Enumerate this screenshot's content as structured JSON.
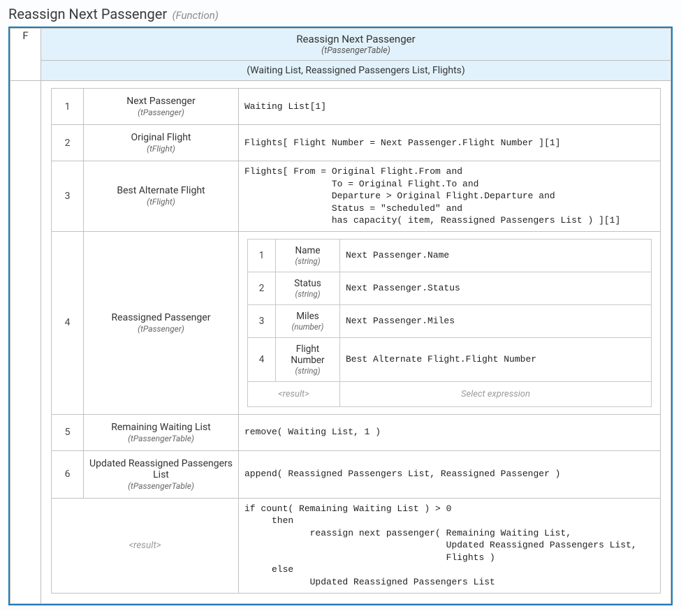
{
  "title": {
    "main": "Reassign Next Passenger",
    "type": "(Function)"
  },
  "header": {
    "name": "Reassign Next Passenger",
    "type": "(tPassengerTable)",
    "params": "(Waiting List, Reassigned Passengers List, Flights)",
    "f_label": "F",
    "bg_color": "#e2f2fc"
  },
  "colors": {
    "outer_border": "#1f7ab5",
    "cell_border": "#bdbdbd",
    "bg": "#fcfdfe"
  },
  "rows": [
    {
      "num": "1",
      "label": "Next Passenger",
      "type": "(tPassenger)",
      "expr": "Waiting List[1]"
    },
    {
      "num": "2",
      "label": "Original Flight",
      "type": "(tFlight)",
      "expr": "Flights[ Flight Number = Next Passenger.Flight Number ][1]"
    },
    {
      "num": "3",
      "label": "Best Alternate Flight",
      "type": "(tFlight)",
      "expr": "Flights[ From = Original Flight.From and\n                To = Original Flight.To and\n                Departure > Original Flight.Departure and\n                Status = \"scheduled\" and\n                has capacity( item, Reassigned Passengers List ) ][1]"
    },
    {
      "num": "4",
      "label": "Reassigned Passenger",
      "type": "(tPassenger)",
      "nested": [
        {
          "num": "1",
          "label": "Name",
          "type": "(string)",
          "expr": "Next Passenger.Name"
        },
        {
          "num": "2",
          "label": "Status",
          "type": "(string)",
          "expr": "Next Passenger.Status"
        },
        {
          "num": "3",
          "label": "Miles",
          "type": "(number)",
          "expr": "Next Passenger.Miles"
        },
        {
          "num": "4",
          "label": "Flight Number",
          "type": "(string)",
          "expr": "Best Alternate Flight.Flight Number"
        }
      ],
      "nested_result": "<result>",
      "nested_select": "Select expression"
    },
    {
      "num": "5",
      "label": "Remaining Waiting List",
      "type": "(tPassengerTable)",
      "expr": "remove( Waiting List, 1 )"
    },
    {
      "num": "6",
      "label": "Updated Reassigned Passengers List",
      "type": "(tPassengerTable)",
      "expr": "append( Reassigned Passengers List, Reassigned Passenger )"
    }
  ],
  "result": {
    "label": "<result>",
    "expr": "if count( Remaining Waiting List ) > 0\n     then\n            reassign next passenger( Remaining Waiting List,\n                                     Updated Reassigned Passengers List,\n                                     Flights )\n     else\n            Updated Reassigned Passengers List"
  }
}
